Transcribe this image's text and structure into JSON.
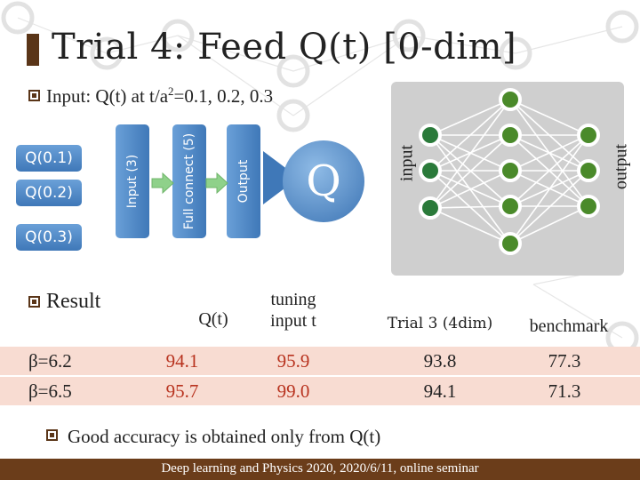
{
  "title": "Trial 4: Feed Q(t) [0-dim]",
  "input_line": {
    "prefix": "Input: Q(t) at t/a",
    "superscript": "2",
    "suffix": "=0.1, 0.2, 0.3"
  },
  "inputs": [
    "Q(0.1)",
    "Q(0.2)",
    "Q(0.3)"
  ],
  "layers": [
    "Input (3)",
    "Full connect (5)",
    "Output"
  ],
  "q_symbol": "Q",
  "net_labels": {
    "input": "input",
    "output": "output"
  },
  "result_label": "Result",
  "table": {
    "headers": [
      "Q(t)",
      "tuning input t",
      "Trial 3 (4dim)",
      "benchmark"
    ],
    "rows": [
      {
        "beta": "β=6.2",
        "values": [
          "94.1",
          "95.9",
          "93.8",
          "77.3"
        ]
      },
      {
        "beta": "β=6.5",
        "values": [
          "95.7",
          "99.0",
          "94.1",
          "71.3"
        ]
      }
    ]
  },
  "note": "Good accuracy is obtained only from Q(t)",
  "footer": "Deep learning and Physics 2020, 2020/6/11, online seminar",
  "colors": {
    "accent": "#5a3518",
    "box_blue": "#3f78b8",
    "arrow_green": "#8fd18a",
    "row_pink": "#f8dcd2",
    "value_red": "#b8331f",
    "footer": "#6b3d1a"
  }
}
